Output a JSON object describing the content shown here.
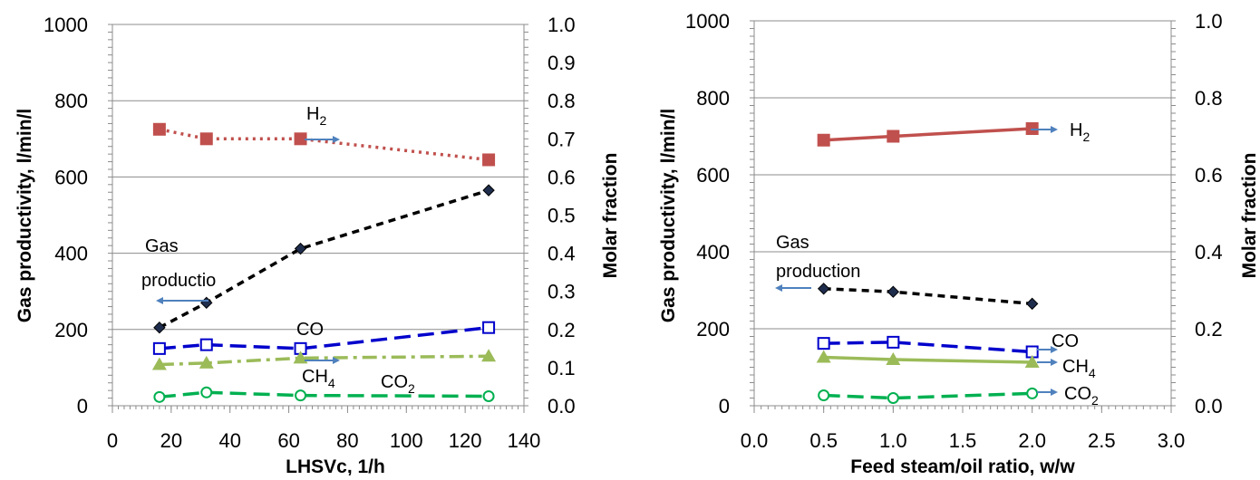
{
  "chart_data": [
    {
      "type": "line",
      "xlabel": "LHSVc, 1/h",
      "ylabel": "Gas productivity, l/min/l",
      "y2label": "Molar fraction",
      "xlim": [
        0,
        140
      ],
      "ylim": [
        0,
        1000
      ],
      "y2lim": [
        0,
        1.0
      ],
      "x_ticks": [
        "0",
        "20",
        "40",
        "60",
        "80",
        "100",
        "120",
        "140"
      ],
      "y_ticks": [
        "0",
        "200",
        "400",
        "600",
        "800",
        "1000"
      ],
      "y2_ticks": [
        "0.0",
        "0.1",
        "0.2",
        "0.3",
        "0.4",
        "0.5",
        "0.6",
        "0.7",
        "0.8",
        "0.9",
        "1.0"
      ],
      "grid": "horizontal",
      "series": [
        {
          "name": "H2",
          "axis": "right",
          "color": "#c0504d",
          "marker": "square-filled",
          "line": "dotted",
          "x": [
            16,
            32,
            64,
            128
          ],
          "y": [
            0.725,
            0.7,
            0.7,
            0.645
          ]
        },
        {
          "name": "Gas productio",
          "axis": "left",
          "color": "#000000",
          "marker": "diamond",
          "line": "dashed",
          "x": [
            16,
            32,
            64,
            128
          ],
          "y": [
            205,
            270,
            412,
            565
          ]
        },
        {
          "name": "CO",
          "axis": "right",
          "color": "#0000cc",
          "marker": "square-open",
          "line": "longdash",
          "x": [
            16,
            32,
            64,
            128
          ],
          "y": [
            0.15,
            0.16,
            0.15,
            0.205
          ]
        },
        {
          "name": "CH4",
          "axis": "right",
          "color": "#9bbb59",
          "marker": "triangle",
          "line": "dashdot",
          "x": [
            16,
            32,
            64,
            128
          ],
          "y": [
            0.108,
            0.112,
            0.125,
            0.13
          ]
        },
        {
          "name": "CO2",
          "axis": "right",
          "color": "#00b050",
          "marker": "circle-open",
          "line": "longdash",
          "x": [
            16,
            32,
            64,
            128
          ],
          "y": [
            0.023,
            0.035,
            0.027,
            0.025
          ]
        }
      ],
      "annotations": [
        "H2",
        "Gas",
        "productio",
        "CO",
        "CH4",
        "CO2"
      ]
    },
    {
      "type": "line",
      "xlabel": "Feed steam/oil ratio, w/w",
      "ylabel": "Gas productivity, l/min/l",
      "y2label": "Molar fraction",
      "xlim": [
        0,
        3.0
      ],
      "ylim": [
        0,
        1000
      ],
      "y2lim": [
        0,
        1.0
      ],
      "x_ticks": [
        "0.0",
        "0.5",
        "1.0",
        "1.5",
        "2.0",
        "2.5",
        "3.0"
      ],
      "y_ticks": [
        "0",
        "200",
        "400",
        "600",
        "800",
        "1000"
      ],
      "y2_ticks": [
        "0.0",
        "0.2",
        "0.4",
        "0.6",
        "0.8",
        "1.0"
      ],
      "grid": "horizontal",
      "series": [
        {
          "name": "H2",
          "axis": "right",
          "color": "#c0504d",
          "marker": "square-filled",
          "line": "solid",
          "x": [
            0.5,
            1.0,
            2.0
          ],
          "y": [
            0.69,
            0.7,
            0.72
          ]
        },
        {
          "name": "Gas production",
          "axis": "left",
          "color": "#000000",
          "marker": "diamond",
          "line": "dashed",
          "x": [
            0.5,
            1.0,
            2.0
          ],
          "y": [
            304,
            296,
            265
          ]
        },
        {
          "name": "CO",
          "axis": "right",
          "color": "#0000cc",
          "marker": "square-open",
          "line": "longdash",
          "x": [
            0.5,
            1.0,
            2.0
          ],
          "y": [
            0.162,
            0.165,
            0.14
          ]
        },
        {
          "name": "CH4",
          "axis": "right",
          "color": "#9bbb59",
          "marker": "triangle",
          "line": "solid",
          "x": [
            0.5,
            1.0,
            2.0
          ],
          "y": [
            0.126,
            0.12,
            0.113
          ]
        },
        {
          "name": "CO2",
          "axis": "right",
          "color": "#00b050",
          "marker": "circle-open",
          "line": "longdash",
          "x": [
            0.5,
            1.0,
            2.0
          ],
          "y": [
            0.027,
            0.02,
            0.032
          ]
        }
      ],
      "annotations": [
        "H2",
        "Gas",
        "production",
        "CO",
        "CH4",
        "CO2"
      ]
    }
  ],
  "arrow_color": "#4f81bd"
}
